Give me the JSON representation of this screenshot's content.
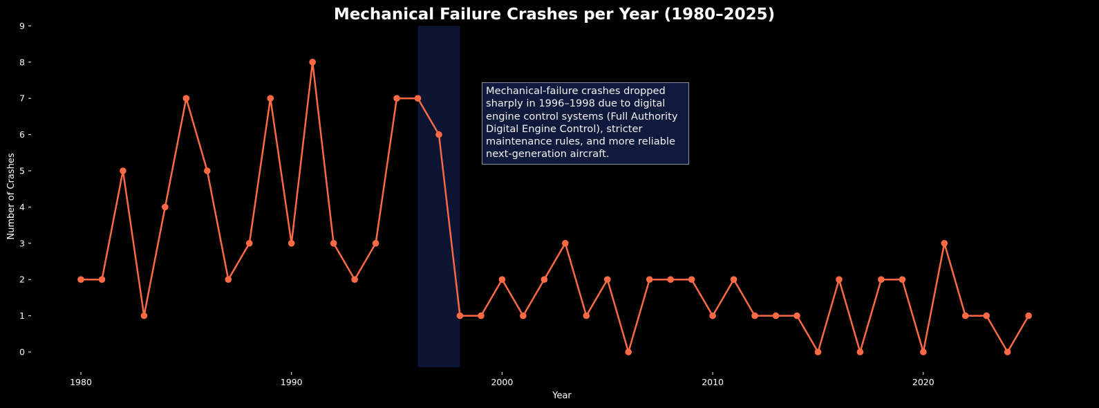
{
  "chart_data": {
    "type": "line",
    "title": "Mechanical Failure Crashes per Year (1980–2025)",
    "xlabel": "Year",
    "ylabel": "Number of Crashes",
    "x": [
      1980,
      1981,
      1982,
      1983,
      1984,
      1985,
      1986,
      1987,
      1988,
      1989,
      1990,
      1991,
      1992,
      1993,
      1994,
      1995,
      1996,
      1997,
      1998,
      1999,
      2000,
      2001,
      2002,
      2003,
      2004,
      2005,
      2006,
      2007,
      2008,
      2009,
      2010,
      2011,
      2012,
      2013,
      2014,
      2015,
      2016,
      2017,
      2018,
      2019,
      2020,
      2021,
      2022,
      2023,
      2024,
      2025
    ],
    "series": [
      {
        "name": "Mechanical failure crashes",
        "values": [
          2,
          2,
          5,
          1,
          4,
          7,
          5,
          2,
          3,
          7,
          3,
          8,
          3,
          2,
          3,
          7,
          7,
          6,
          1,
          1,
          2,
          1,
          2,
          3,
          1,
          2,
          0,
          2,
          2,
          2,
          1,
          2,
          1,
          1,
          1,
          0,
          2,
          0,
          2,
          2,
          0,
          3,
          1,
          1,
          0,
          1
        ]
      }
    ],
    "xticks": [
      1980,
      1990,
      2000,
      2010,
      2020
    ],
    "yticks": [
      0,
      1,
      2,
      3,
      4,
      5,
      6,
      7,
      8,
      9
    ],
    "xlim": [
      1977.9,
      2027.1
    ],
    "ylim": [
      -0.4,
      9
    ],
    "grid": false,
    "legend": null,
    "highlight_span": {
      "start": 1996,
      "end": 1998,
      "color": "#0c1533"
    },
    "annotation": "Mechanical-failure crashes dropped\nsharply in 1996–1998 due to digital\nengine control systems (Full Authority\nDigital Engine Control), stricter\nmaintenance rules, and more reliable\nnext-generation aircraft."
  },
  "colors": {
    "background": "#000000",
    "line": "#ff6a45",
    "highlight": "#0c1533",
    "annotation_bg": "#0f1a3d",
    "annotation_border": "#8a91a6",
    "text": "#ffffff"
  }
}
